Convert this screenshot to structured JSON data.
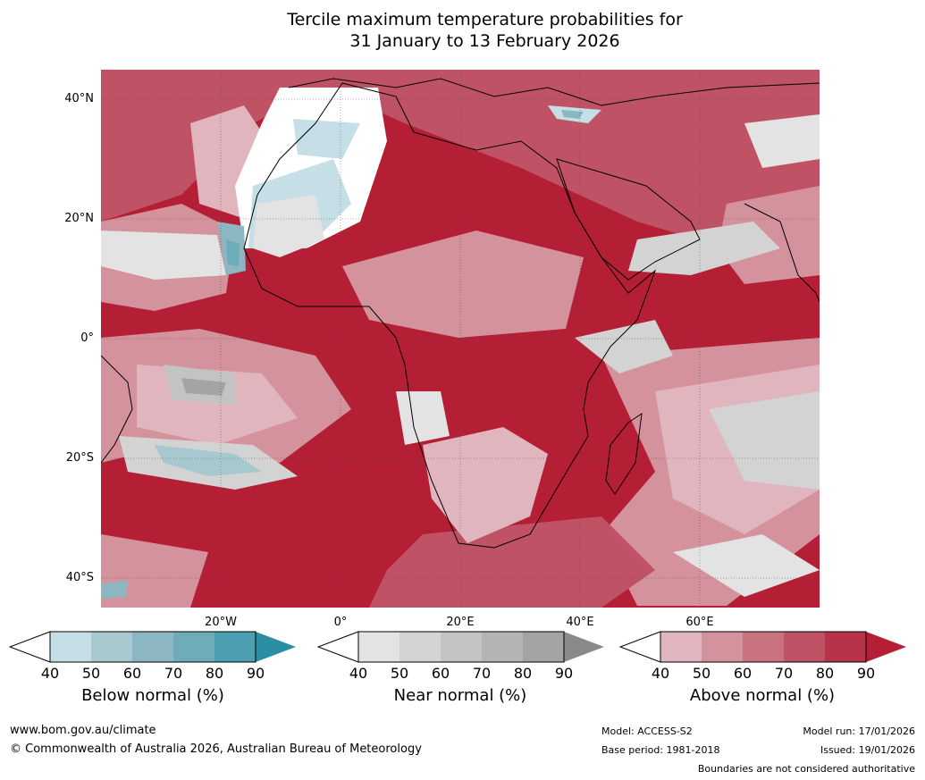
{
  "title": {
    "line1": "Tercile maximum temperature probabilities for",
    "line2": "31 January to 13 February 2026"
  },
  "map": {
    "latitude_labels": [
      "40°N",
      "20°N",
      "0°",
      "20°S",
      "40°S"
    ],
    "longitude_labels": [
      "20°W",
      "0°",
      "20°E",
      "40°E",
      "60°E"
    ]
  },
  "legends": {
    "below": {
      "title": "Below normal (%)",
      "ticks": [
        "40",
        "50",
        "60",
        "70",
        "80",
        "90"
      ],
      "colors": [
        "#c6dfe6",
        "#a8c8d0",
        "#8bb6c2",
        "#6eacb9",
        "#4b9fb0",
        "#2c8ea4"
      ]
    },
    "near": {
      "title": "Near normal (%)",
      "ticks": [
        "40",
        "50",
        "60",
        "70",
        "80",
        "90"
      ],
      "colors": [
        "#e3e3e3",
        "#d3d3d3",
        "#c3c3c3",
        "#b4b4b4",
        "#a4a4a4",
        "#8a8a8a"
      ]
    },
    "above": {
      "title": "Above normal (%)",
      "ticks": [
        "40",
        "50",
        "60",
        "70",
        "80",
        "90"
      ],
      "colors": [
        "#e0b5bd",
        "#d4929d",
        "#c8727e",
        "#c05265",
        "#b73349",
        "#b41f36"
      ]
    }
  },
  "footer": {
    "website": "www.bom.gov.au/climate",
    "copyright": "© Commonwealth of Australia 2026, Australian Bureau of Meteorology",
    "model": "Model: ACCESS-S2",
    "base_period": "Base period: 1981-2018",
    "model_run": "Model run: 17/01/2026",
    "issued": "Issued: 19/01/2026",
    "disclaimer": "Boundaries are not considered authoritative"
  }
}
